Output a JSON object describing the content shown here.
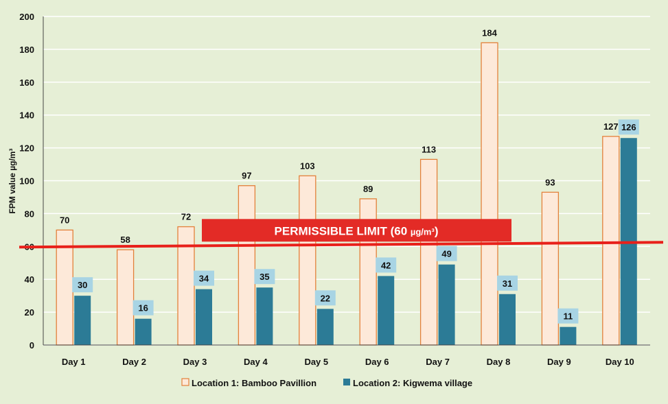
{
  "colors": {
    "background": "#e6efd6",
    "series1_fill": "#fde9d9",
    "series1_stroke": "#e3803a",
    "series2_fill": "#2c7b96",
    "series2_label_bg": "#a8d4e4",
    "limit_line": "#e8201a",
    "limit_banner": "#e32b26"
  },
  "limit": {
    "value": 60,
    "label_text": "PERMISSIBLE LIMIT (60 ",
    "label_unit": "µg/m³",
    "label_close": ")"
  },
  "chart_data": {
    "type": "bar",
    "title": "",
    "xlabel": "",
    "ylabel": "FPM value  µg/m³",
    "ylim": [
      0,
      200
    ],
    "yticks": [
      0,
      20,
      40,
      60,
      80,
      100,
      120,
      140,
      160,
      180,
      200
    ],
    "grid": "horizontal",
    "legend_position": "bottom",
    "categories": [
      "Day 1",
      "Day 2",
      "Day 3",
      "Day 4",
      "Day 5",
      "Day 6",
      "Day 7",
      "Day 8",
      "Day 9",
      "Day 10"
    ],
    "series": [
      {
        "name": "Location 1: Bamboo Pavillion",
        "values": [
          70,
          58,
          72,
          97,
          103,
          89,
          113,
          184,
          93,
          127
        ]
      },
      {
        "name": "Location 2: Kigwema village",
        "values": [
          30,
          16,
          34,
          35,
          22,
          42,
          49,
          31,
          11,
          126
        ]
      }
    ]
  }
}
